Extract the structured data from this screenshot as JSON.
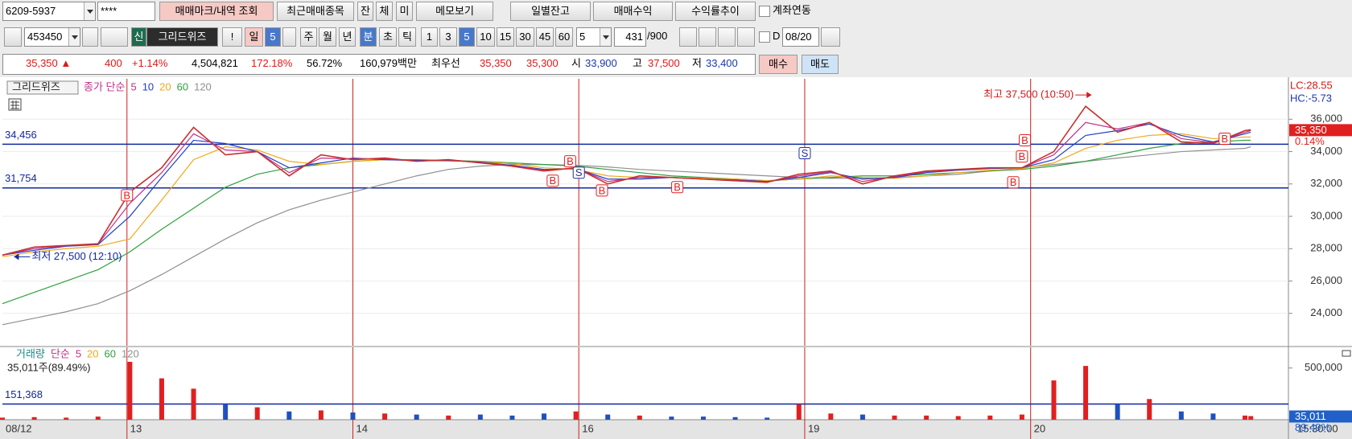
{
  "toolbar": {
    "row1": [
      "6209-5937",
      "****",
      "매매마크/내역 조회",
      "최근매매종목",
      "잔",
      "체",
      "미",
      "메모보기",
      "일별잔고",
      "매매수익",
      "수익률추이",
      "계좌연동"
    ],
    "row2": [
      "453450",
      "신",
      "그리드위즈",
      "!",
      "일",
      "5",
      "주",
      "월",
      "년",
      "분",
      "초",
      "틱",
      "1",
      "3",
      "5",
      "10",
      "15",
      "30",
      "45",
      "60",
      "5",
      "431",
      "/900",
      "D",
      "08/20"
    ],
    "row3": [
      "35,350 ▲",
      "400",
      "+1.14%",
      "4,504,821",
      "172.18%",
      "56.72%",
      "160,979백만",
      "최우선",
      "35,350",
      "35,300",
      "시",
      "33,900",
      "고",
      "37,500",
      "저",
      "33,400",
      "매수",
      "매도"
    ]
  },
  "chart_data": [
    {
      "type": "line",
      "legend_box": "그리드위즈",
      "legend_prefix": "종가 단순",
      "legend_prefix_color": "#c0308a",
      "x": [
        0,
        11,
        22,
        33,
        44,
        55,
        66,
        77,
        88,
        99,
        110,
        121,
        132,
        143,
        154,
        165,
        176,
        187,
        198,
        209,
        220,
        231,
        242,
        253,
        264,
        275,
        286,
        297,
        308,
        319,
        330,
        341,
        352,
        363,
        374,
        385,
        396,
        407,
        418,
        429,
        431
      ],
      "xlim": [
        0,
        444
      ],
      "ylim": [
        22000,
        38500
      ],
      "yticks": [
        {
          "value": 24000,
          "label": "24,000"
        },
        {
          "value": 26000,
          "label": "26,000"
        },
        {
          "value": 28000,
          "label": "28,000"
        },
        {
          "value": 30000,
          "label": "30,000"
        },
        {
          "value": 32000,
          "label": "32,000"
        },
        {
          "value": 34000,
          "label": "34,000"
        },
        {
          "value": 36000,
          "label": "36,000"
        }
      ],
      "grid": true,
      "close": {
        "color": "#c83030",
        "values": [
          27600,
          28100,
          28200,
          28300,
          31500,
          33000,
          35500,
          33800,
          34000,
          32500,
          33800,
          33500,
          33600,
          33400,
          33500,
          33300,
          33100,
          32800,
          33000,
          32000,
          32500,
          32400,
          32300,
          32200,
          32100,
          32600,
          32800,
          32000,
          32500,
          32800,
          32900,
          33000,
          33000,
          34000,
          36800,
          35200,
          35800,
          34600,
          34500,
          35300,
          35350
        ]
      },
      "series": [
        {
          "name": "5",
          "color": "#c0308a",
          "values": [
            27600,
            28000,
            28180,
            28280,
            30800,
            32700,
            35100,
            34100,
            34000,
            32700,
            33600,
            33550,
            33550,
            33420,
            33480,
            33320,
            33120,
            32850,
            32980,
            32150,
            32400,
            32400,
            32300,
            32220,
            32120,
            32500,
            32750,
            32150,
            32450,
            32750,
            32880,
            32980,
            33000,
            33800,
            35800,
            35400,
            35800,
            34800,
            34550,
            35200,
            35300
          ]
        },
        {
          "name": "10",
          "color": "#2040c8",
          "values": [
            27600,
            27900,
            28150,
            28250,
            30000,
            32400,
            34700,
            34500,
            34000,
            33000,
            33300,
            33600,
            33500,
            33450,
            33450,
            33350,
            33150,
            32900,
            32950,
            32300,
            32300,
            32400,
            32300,
            32250,
            32150,
            32400,
            32700,
            32300,
            32400,
            32700,
            32850,
            32950,
            33000,
            33500,
            35000,
            35300,
            35700,
            35000,
            34600,
            35100,
            35200
          ]
        },
        {
          "name": "20",
          "color": "#f0a818",
          "values": [
            27500,
            27800,
            28000,
            28150,
            28600,
            31000,
            33500,
            34300,
            34100,
            33400,
            33200,
            33400,
            33500,
            33450,
            33420,
            33380,
            33250,
            33000,
            32900,
            32500,
            32400,
            32400,
            32350,
            32300,
            32200,
            32300,
            32500,
            32400,
            32350,
            32500,
            32700,
            32850,
            32950,
            33300,
            34200,
            34700,
            35000,
            35100,
            34800,
            34900,
            34900
          ]
        },
        {
          "name": "60",
          "color": "#30a040",
          "values": [
            24600,
            25300,
            26000,
            26700,
            27800,
            29200,
            30500,
            31800,
            32600,
            33000,
            33200,
            33400,
            33500,
            33500,
            33450,
            33400,
            33300,
            33200,
            33100,
            32900,
            32700,
            32500,
            32400,
            32300,
            32200,
            32300,
            32400,
            32500,
            32500,
            32600,
            32700,
            32800,
            32900,
            33100,
            33400,
            33800,
            34200,
            34500,
            34600,
            34700,
            34700
          ]
        },
        {
          "name": "120",
          "color": "#909090",
          "values": [
            23300,
            23700,
            24100,
            24600,
            25400,
            26400,
            27500,
            28600,
            29600,
            30400,
            31000,
            31500,
            32000,
            32500,
            32900,
            33100,
            33200,
            33200,
            33150,
            33050,
            32900,
            32800,
            32700,
            32600,
            32500,
            32400,
            32350,
            32350,
            32400,
            32500,
            32600,
            32800,
            33000,
            33200,
            33400,
            33600,
            33800,
            34000,
            34100,
            34200,
            34300
          ]
        }
      ],
      "hlines": [
        {
          "value": 34456,
          "label": "34,456",
          "color": "#1028a0"
        },
        {
          "value": 31754,
          "label": "31,754",
          "color": "#1028a0"
        }
      ],
      "annotations": [
        {
          "text": "최고 37,500 (10:50)",
          "x": 376,
          "value": 37500,
          "color": "#d01818"
        },
        {
          "text": "최저 27,500 (12:10)",
          "x": 4,
          "value": 27500,
          "color": "#1028a0"
        }
      ],
      "markers": [
        {
          "label": "B",
          "x": 43,
          "value": 31300,
          "color": "#e02020"
        },
        {
          "label": "B",
          "x": 190,
          "value": 32200,
          "color": "#e02020"
        },
        {
          "label": "B",
          "x": 196,
          "value": 33400,
          "color": "#e02020"
        },
        {
          "label": "S",
          "x": 199,
          "value": 32700,
          "color": "#2030a0"
        },
        {
          "label": "B",
          "x": 207,
          "value": 31600,
          "color": "#e02020"
        },
        {
          "label": "B",
          "x": 233,
          "value": 31800,
          "color": "#e02020"
        },
        {
          "label": "S",
          "x": 277,
          "value": 33900,
          "color": "#2030a0"
        },
        {
          "label": "B",
          "x": 349,
          "value": 32100,
          "color": "#e02020"
        },
        {
          "label": "B",
          "x": 352,
          "value": 33700,
          "color": "#e02020"
        },
        {
          "label": "B",
          "x": 353,
          "value": 34700,
          "color": "#e02020"
        },
        {
          "label": "B",
          "x": 422,
          "value": 34800,
          "color": "#e02020"
        }
      ],
      "lc_label": "LC:28.55",
      "hc_label": "HC:-5.73",
      "current": {
        "value": 35350,
        "label": "35,350",
        "change": "0.14%",
        "color": "#e02020"
      }
    },
    {
      "type": "bar",
      "legend": [
        {
          "text": "거래량",
          "color": "#208a8a"
        },
        {
          "text": "단순",
          "color": "#c0308a"
        },
        {
          "text": "5",
          "color": "#c0308a"
        },
        {
          "text": "20",
          "color": "#f0a818"
        },
        {
          "text": "60",
          "color": "#30a040"
        },
        {
          "text": "120",
          "color": "#909090"
        }
      ],
      "summary": "35,011주(89.49%)",
      "x": [
        0,
        11,
        22,
        33,
        44,
        55,
        66,
        77,
        88,
        99,
        110,
        121,
        132,
        143,
        154,
        165,
        176,
        187,
        198,
        209,
        220,
        231,
        242,
        253,
        264,
        275,
        286,
        297,
        308,
        319,
        330,
        341,
        352,
        363,
        374,
        385,
        396,
        407,
        418,
        429,
        431
      ],
      "values": [
        20000,
        25000,
        20000,
        30000,
        560000,
        400000,
        300000,
        150000,
        120000,
        80000,
        90000,
        70000,
        60000,
        50000,
        40000,
        50000,
        40000,
        60000,
        80000,
        50000,
        40000,
        30000,
        30000,
        25000,
        20000,
        150000,
        60000,
        50000,
        40000,
        40000,
        35000,
        40000,
        50000,
        380000,
        520000,
        150000,
        200000,
        80000,
        60000,
        40000,
        35011
      ],
      "colors": {
        "up": "#e02020",
        "down": "#2050c0"
      },
      "xlim": [
        0,
        444
      ],
      "ylim": [
        0,
        700000
      ],
      "yticks": [
        {
          "value": 500000,
          "label": "500,000"
        }
      ],
      "xticks": [
        {
          "value": 0,
          "label": "08/12"
        },
        {
          "value": 43,
          "label": "13"
        },
        {
          "value": 121,
          "label": "14"
        },
        {
          "value": 199,
          "label": "16"
        },
        {
          "value": 277,
          "label": "19"
        },
        {
          "value": 355,
          "label": "20"
        }
      ],
      "day_line_color": "#d02020",
      "time_label": "15:30:00",
      "hlines": [
        {
          "value": 151368,
          "label": "151,368",
          "color": "#1028a0"
        }
      ],
      "current": {
        "value": 35011,
        "label": "35,011",
        "change": "89.49%",
        "color": "#2060c8"
      }
    }
  ]
}
